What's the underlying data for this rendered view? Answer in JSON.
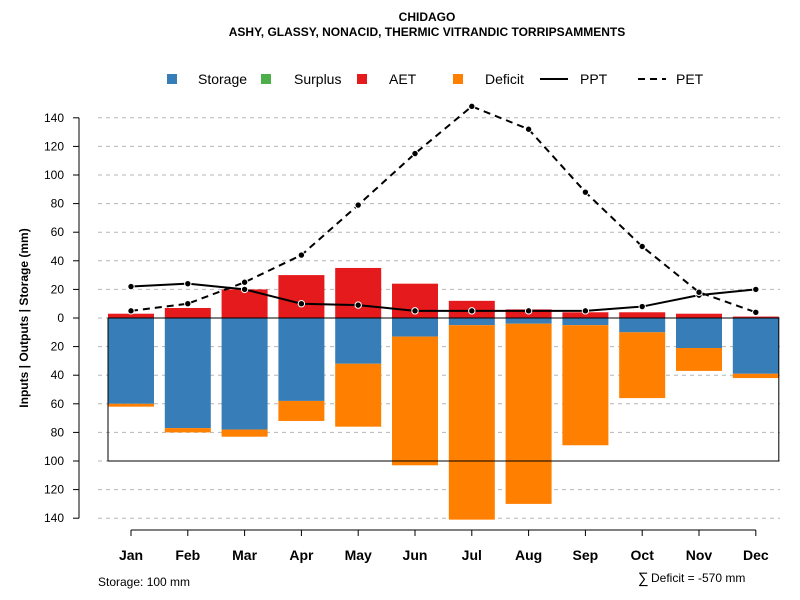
{
  "chart_data": {
    "type": "bar",
    "title": "CHIDAGO",
    "subtitle": "ASHY, GLASSY, NONACID, THERMIC VITRANDIC TORRIPSAMMENTS",
    "ylabel": "Inputs | Outputs | Storage    (mm)",
    "categories": [
      "Jan",
      "Feb",
      "Mar",
      "Apr",
      "May",
      "Jun",
      "Jul",
      "Aug",
      "Sep",
      "Oct",
      "Nov",
      "Dec"
    ],
    "ylim": [
      -140,
      150
    ],
    "yticks": [
      140,
      120,
      100,
      80,
      60,
      40,
      20,
      0,
      -20,
      -40,
      -60,
      -80,
      -100,
      -120,
      -140
    ],
    "ytick_labels": [
      "140",
      "120",
      "100",
      "80",
      "60",
      "40",
      "20",
      "0",
      "20",
      "40",
      "60",
      "80",
      "100",
      "120",
      "140"
    ],
    "storage_capacity": 100,
    "series": [
      {
        "name": "Storage",
        "color": "#377EB8",
        "values": [
          60,
          77,
          78,
          58,
          32,
          13,
          5,
          4,
          5,
          10,
          21,
          39
        ]
      },
      {
        "name": "Surplus",
        "color": "#4DAF4A",
        "values": [
          0,
          0,
          0,
          0,
          0,
          0,
          0,
          0,
          0,
          0,
          0,
          0
        ]
      },
      {
        "name": "AET",
        "color": "#E41A1C",
        "values": [
          3,
          7,
          20,
          30,
          35,
          24,
          12,
          6,
          4,
          4,
          3,
          1
        ]
      },
      {
        "name": "Deficit",
        "color": "#FF7F00",
        "values": [
          2,
          3,
          5,
          14,
          44,
          90,
          136,
          126,
          84,
          46,
          16,
          3
        ]
      },
      {
        "name": "PPT",
        "color": "#000000",
        "values": [
          22,
          24,
          20,
          10,
          9,
          5,
          5,
          5,
          5,
          8,
          16,
          20
        ]
      },
      {
        "name": "PET",
        "color": "#000000",
        "values": [
          5,
          10,
          25,
          44,
          79,
          115,
          148,
          132,
          88,
          50,
          18,
          4
        ]
      }
    ],
    "legend": {
      "position": "top",
      "entries": [
        "Storage",
        "Surplus",
        "AET",
        "Deficit",
        "PPT",
        "PET"
      ]
    },
    "grid": true,
    "footnote_left": "Storage: 100 mm",
    "footnote_right_symbol": "∑",
    "footnote_right": "Deficit = -570 mm"
  }
}
